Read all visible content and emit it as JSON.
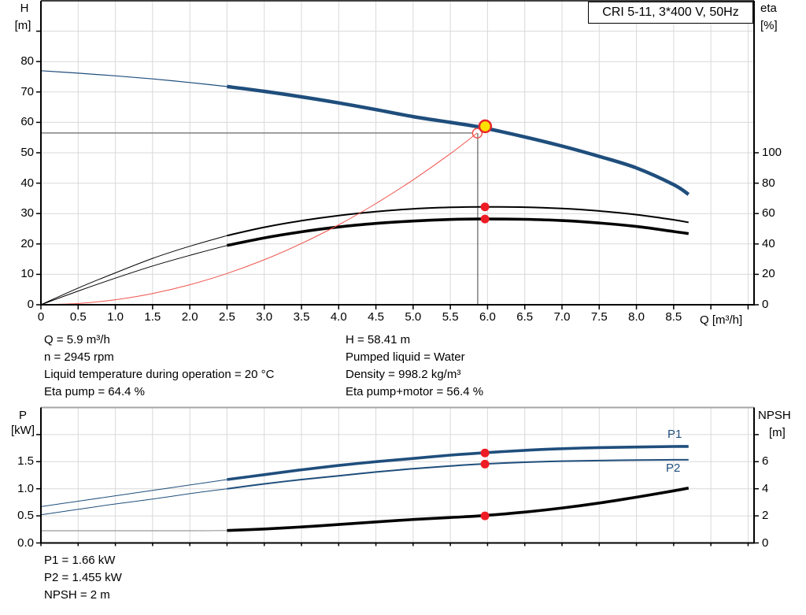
{
  "title_box": {
    "label": "CRI 5-11, 3*400 V, 50Hz"
  },
  "axes_labels": {
    "top_left_1": "H",
    "top_left_2": "[m]",
    "top_right_1": "eta",
    "top_right_2": "[%]",
    "q_axis": "Q [m³/h]",
    "bottom_left_1": "P",
    "bottom_left_2": "[kW]",
    "bottom_right_1": "NPSH",
    "bottom_right_2": "[m]"
  },
  "annotations": {
    "left": [
      "Q = 5.9 m³/h",
      "n = 2945 rpm",
      "Liquid temperature during operation = 20 °C",
      "Eta pump = 64.4 %"
    ],
    "right": [
      "H = 58.41 m",
      "Pumped liquid = Water",
      "Density = 998.2 kg/m³",
      "Eta pump+motor = 56.4 %"
    ],
    "bottom": [
      "P1 = 1.66 kW",
      "P2 = 1.455 kW",
      "NPSH = 2 m"
    ]
  },
  "colors": {
    "blue": "#1f4e7c",
    "black": "#000000",
    "red_line": "#f0544c",
    "dot_red": "#ee1c25",
    "duty_yellow": "#ffe100",
    "duty_ring": "#e8262b",
    "grid": "#d9d9d9",
    "op_gray": "#808080",
    "vline_gray": "#404040",
    "npsh_thin_gray": "#999999",
    "bottom_top_border": "#a6a6a6"
  },
  "chart_data": [
    {
      "type": "line",
      "title": "CRI 5-11, 3*400 V, 50Hz",
      "xlabel": "Q [m³/h]",
      "ylabel_left": "H [m]",
      "ylabel_right": "eta [%]",
      "xlim": [
        0,
        9.58
      ],
      "ylim_left": [
        0,
        100
      ],
      "ylim_right": [
        0,
        200
      ],
      "grid": true,
      "x_ticks": [
        {
          "v": 0,
          "label": "0"
        },
        {
          "v": 0.5,
          "label": "0.5"
        },
        {
          "v": 1,
          "label": "1.0"
        },
        {
          "v": 1.5,
          "label": "1.5"
        },
        {
          "v": 2,
          "label": "2.0"
        },
        {
          "v": 2.5,
          "label": "2.5"
        },
        {
          "v": 3,
          "label": "3.0"
        },
        {
          "v": 3.5,
          "label": "3.5"
        },
        {
          "v": 4,
          "label": "4.0"
        },
        {
          "v": 4.5,
          "label": "4.5"
        },
        {
          "v": 5,
          "label": "5.0"
        },
        {
          "v": 5.5,
          "label": "5.5"
        },
        {
          "v": 6,
          "label": "6.0"
        },
        {
          "v": 6.5,
          "label": "6.5"
        },
        {
          "v": 7,
          "label": "7.0"
        },
        {
          "v": 7.5,
          "label": "7.5"
        },
        {
          "v": 8,
          "label": "8.0"
        },
        {
          "v": 8.5,
          "label": "8.5"
        },
        {
          "v": 9,
          "label": ""
        },
        {
          "v": 9.5,
          "label": ""
        }
      ],
      "left_ticks": [
        {
          "v": 0,
          "label": "0"
        },
        {
          "v": 10,
          "label": "10"
        },
        {
          "v": 20,
          "label": "20"
        },
        {
          "v": 30,
          "label": "30"
        },
        {
          "v": 40,
          "label": "40"
        },
        {
          "v": 50,
          "label": "50"
        },
        {
          "v": 60,
          "label": "60"
        },
        {
          "v": 70,
          "label": "70"
        },
        {
          "v": 80,
          "label": "80"
        },
        {
          "v": 90,
          "label": ""
        }
      ],
      "right_ticks": [
        {
          "v": 0,
          "label": "0"
        },
        {
          "v": 20,
          "label": "20"
        },
        {
          "v": 40,
          "label": "40"
        },
        {
          "v": 60,
          "label": "60"
        },
        {
          "v": 80,
          "label": "80"
        },
        {
          "v": 100,
          "label": "100"
        }
      ],
      "series": [
        {
          "name": "H-Q curve",
          "yaxis": "left",
          "color": "#1f4e7c",
          "segments": [
            {
              "width": 1.2,
              "x": [
                0,
                0.5,
                1,
                1.5,
                2,
                2.5
              ],
              "y": [
                77,
                76.2,
                75.3,
                74.3,
                73.1,
                71.8
              ]
            },
            {
              "width": 4.5,
              "x": [
                2.5,
                3,
                3.5,
                4,
                4.5,
                5,
                5.5,
                5.9,
                6.5,
                7,
                7.5,
                8,
                8.5,
                8.7
              ],
              "y": [
                71.8,
                70.2,
                68.4,
                66.4,
                64.2,
                61.9,
                60.0,
                58.41,
                55.2,
                52.2,
                48.8,
                45.0,
                39.5,
                36.3
              ]
            }
          ]
        },
        {
          "name": "Eta pump",
          "yaxis": "right",
          "color": "#000000",
          "segments": [
            {
              "width": 1,
              "x": [
                0,
                0.5,
                1,
                1.5,
                2,
                2.5
              ],
              "y": [
                0,
                11,
                21,
                30.5,
                38.5,
                45.5
              ]
            },
            {
              "width": 2,
              "x": [
                2.5,
                3,
                3.5,
                4,
                4.5,
                5,
                5.5,
                5.9,
                6.5,
                7,
                7.5,
                8,
                8.5,
                8.7
              ],
              "y": [
                45.5,
                51,
                55.3,
                58.7,
                61.3,
                63.1,
                64.1,
                64.4,
                64.2,
                63.3,
                61.7,
                59.3,
                55.9,
                54.2
              ]
            }
          ]
        },
        {
          "name": "Eta pump+motor",
          "yaxis": "right",
          "color": "#000000",
          "segments": [
            {
              "width": 1,
              "x": [
                0,
                0.5,
                1,
                1.5,
                2,
                2.5
              ],
              "y": [
                0,
                9,
                17.5,
                25.5,
                32.5,
                39
              ]
            },
            {
              "width": 3.6,
              "x": [
                2.5,
                3,
                3.5,
                4,
                4.5,
                5,
                5.5,
                5.9,
                6.5,
                7,
                7.5,
                8,
                8.5,
                8.7
              ],
              "y": [
                39,
                44,
                48,
                51.2,
                53.5,
                55.1,
                56.1,
                56.4,
                56.2,
                55.4,
                53.8,
                51.5,
                48.2,
                46.8
              ]
            }
          ]
        },
        {
          "name": "System curve",
          "yaxis": "left",
          "color": "#f0544c",
          "segments": [
            {
              "width": 1,
              "x": [
                0,
                0.5,
                1,
                1.5,
                2,
                2.5,
                3,
                3.5,
                4,
                4.5,
                5,
                5.5,
                5.86
              ],
              "y": [
                0,
                0.41,
                1.65,
                3.7,
                6.58,
                10.28,
                14.8,
                20.15,
                26.3,
                33.3,
                41.1,
                49.7,
                56.5
              ]
            }
          ]
        }
      ],
      "markers": {
        "hline": {
          "y": 56.5,
          "x_from": 0,
          "x_to": 5.795
        },
        "vline": {
          "x": 5.868,
          "y_from": 0,
          "y_to": 56.45
        },
        "open_circle": {
          "x": 5.862,
          "y": 56.45,
          "r": 6
        },
        "duty_point": {
          "x": 5.968,
          "y": 58.7,
          "r": 7.5
        },
        "dots": [
          {
            "x": 5.965,
            "y": 64.4,
            "yaxis": "right"
          },
          {
            "x": 5.965,
            "y": 56.4,
            "yaxis": "right"
          }
        ]
      }
    },
    {
      "type": "line",
      "xlabel": "Q [m³/h]",
      "ylabel_left": "P [kW]",
      "ylabel_right": "NPSH [m]",
      "xlim": [
        0,
        9.58
      ],
      "ylim_left": [
        0,
        2.5
      ],
      "ylim_right": [
        0,
        10
      ],
      "grid": true,
      "p1_label": "P1",
      "p2_label": "P2",
      "left_ticks": [
        {
          "v": 0,
          "label": "0.0"
        },
        {
          "v": 0.5,
          "label": "0.5"
        },
        {
          "v": 1,
          "label": "1.0"
        },
        {
          "v": 1.5,
          "label": "1.5"
        },
        {
          "v": 2,
          "label": ""
        }
      ],
      "right_ticks": [
        {
          "v": 0,
          "label": "0"
        },
        {
          "v": 2,
          "label": "2"
        },
        {
          "v": 4,
          "label": "4"
        },
        {
          "v": 6,
          "label": "6"
        },
        {
          "v": 8,
          "label": ""
        }
      ],
      "series": [
        {
          "name": "P1",
          "yaxis": "left",
          "color": "#1f4e7c",
          "segments": [
            {
              "width": 1,
              "x": [
                0,
                0.5,
                1,
                1.5,
                2,
                2.5
              ],
              "y": [
                0.67,
                0.77,
                0.87,
                0.97,
                1.07,
                1.17
              ]
            },
            {
              "width": 3.6,
              "x": [
                2.5,
                3,
                3.5,
                4,
                4.5,
                5,
                5.5,
                5.9,
                6.5,
                7,
                7.5,
                8,
                8.5,
                8.7
              ],
              "y": [
                1.17,
                1.26,
                1.35,
                1.43,
                1.5,
                1.56,
                1.62,
                1.66,
                1.71,
                1.74,
                1.76,
                1.77,
                1.78,
                1.78
              ]
            }
          ]
        },
        {
          "name": "P2",
          "yaxis": "left",
          "color": "#1f4e7c",
          "segments": [
            {
              "width": 1,
              "x": [
                0,
                0.5,
                1,
                1.5,
                2,
                2.5
              ],
              "y": [
                0.52,
                0.62,
                0.72,
                0.81,
                0.91,
                1.0
              ]
            },
            {
              "width": 2,
              "x": [
                2.5,
                3,
                3.5,
                4,
                4.5,
                5,
                5.5,
                5.9,
                6.5,
                7,
                7.5,
                8,
                8.5,
                8.7
              ],
              "y": [
                1.0,
                1.09,
                1.17,
                1.24,
                1.31,
                1.37,
                1.42,
                1.455,
                1.49,
                1.51,
                1.52,
                1.53,
                1.535,
                1.535
              ]
            }
          ]
        },
        {
          "name": "NPSH",
          "yaxis": "right",
          "color": "#000000",
          "segments": [
            {
              "width": 1.2,
              "color": "#999999",
              "x": [
                0,
                1,
                2,
                2.5
              ],
              "y": [
                0.9,
                0.9,
                0.9,
                0.92
              ]
            },
            {
              "width": 3.6,
              "x": [
                2.5,
                3,
                3.5,
                4,
                4.5,
                5,
                5.5,
                5.9,
                6.5,
                7,
                7.5,
                8,
                8.5,
                8.7
              ],
              "y": [
                0.92,
                1.03,
                1.18,
                1.36,
                1.55,
                1.73,
                1.88,
                2.0,
                2.28,
                2.58,
                2.95,
                3.38,
                3.85,
                4.05
              ]
            }
          ]
        }
      ],
      "markers": {
        "dots": [
          {
            "x": 5.965,
            "y": 1.66,
            "yaxis": "left"
          },
          {
            "x": 5.965,
            "y": 1.455,
            "yaxis": "left"
          },
          {
            "x": 5.965,
            "y": 2.0,
            "yaxis": "right"
          }
        ]
      }
    }
  ]
}
